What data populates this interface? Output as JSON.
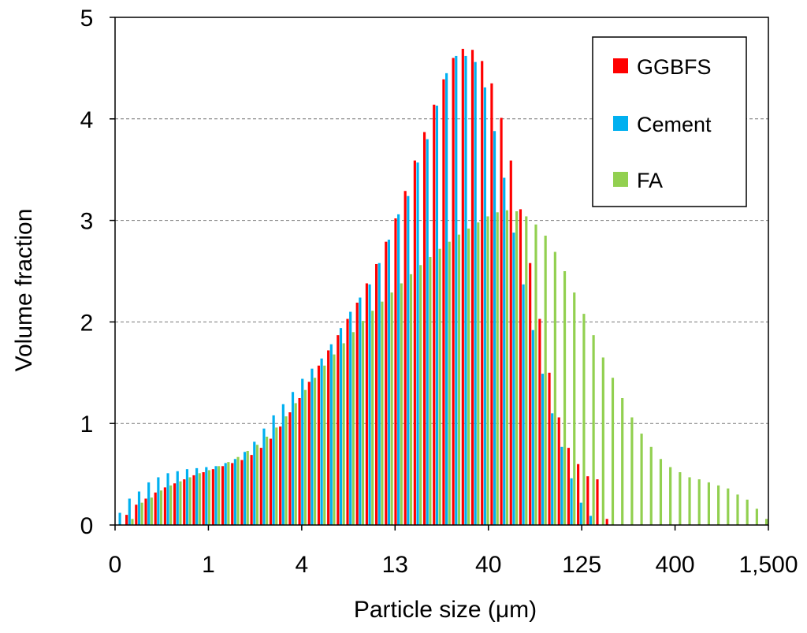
{
  "chart_data": {
    "type": "bar",
    "xlabel": "Particle size (μm)",
    "ylabel": "Volume fraction",
    "ylim": [
      0,
      5
    ],
    "yticks": [
      0,
      1,
      2,
      3,
      4,
      5
    ],
    "xtick_labels": [
      "0",
      "1",
      "4",
      "13",
      "40",
      "125",
      "400",
      "1,500"
    ],
    "legend_position": "top-right",
    "grid": "horizontal dashed",
    "bin_count": 68,
    "series": [
      {
        "name": "GGBFS",
        "color": "#ff0000",
        "values": [
          0,
          0.1,
          0.2,
          0.26,
          0.32,
          0.37,
          0.41,
          0.45,
          0.49,
          0.52,
          0.55,
          0.58,
          0.61,
          0.64,
          0.69,
          0.76,
          0.85,
          0.97,
          1.11,
          1.25,
          1.41,
          1.57,
          1.72,
          1.87,
          2.03,
          2.19,
          2.38,
          2.57,
          2.79,
          3.02,
          3.29,
          3.59,
          3.87,
          4.14,
          4.39,
          4.6,
          4.69,
          4.68,
          4.57,
          4.35,
          4.01,
          3.59,
          3.11,
          2.58,
          2.03,
          1.5,
          1.06,
          0.76,
          0.6,
          0.48,
          0.45,
          0.06,
          0,
          0,
          0,
          0,
          0,
          0,
          0,
          0,
          0,
          0,
          0,
          0,
          0,
          0,
          0,
          0
        ]
      },
      {
        "name": "Cement",
        "color": "#00b0f0",
        "values": [
          0.12,
          0.26,
          0.33,
          0.42,
          0.47,
          0.51,
          0.53,
          0.55,
          0.56,
          0.57,
          0.58,
          0.61,
          0.65,
          0.72,
          0.82,
          0.95,
          1.08,
          1.19,
          1.31,
          1.44,
          1.54,
          1.64,
          1.78,
          1.94,
          2.1,
          2.24,
          2.37,
          2.58,
          2.81,
          3.06,
          3.24,
          3.57,
          3.8,
          4.13,
          4.45,
          4.62,
          4.62,
          4.56,
          4.31,
          3.88,
          3.42,
          2.88,
          2.37,
          1.92,
          1.49,
          1.1,
          0.77,
          0.46,
          0.22,
          0.09,
          0,
          0,
          0,
          0,
          0,
          0,
          0,
          0,
          0,
          0,
          0,
          0,
          0,
          0,
          0,
          0,
          0,
          0
        ]
      },
      {
        "name": "FA",
        "color": "#92d050",
        "values": [
          0,
          0.06,
          0.22,
          0.27,
          0.34,
          0.39,
          0.43,
          0.47,
          0.51,
          0.54,
          0.58,
          0.62,
          0.67,
          0.73,
          0.79,
          0.87,
          0.96,
          1.07,
          1.2,
          1.33,
          1.45,
          1.57,
          1.68,
          1.79,
          1.9,
          2.01,
          2.11,
          2.2,
          2.29,
          2.38,
          2.47,
          2.56,
          2.64,
          2.72,
          2.79,
          2.86,
          2.92,
          2.98,
          3.04,
          3.08,
          3.1,
          3.09,
          3.04,
          2.96,
          2.85,
          2.69,
          2.5,
          2.29,
          2.08,
          1.87,
          1.65,
          1.45,
          1.25,
          1.06,
          0.9,
          0.77,
          0.65,
          0.57,
          0.52,
          0.47,
          0.45,
          0.42,
          0.39,
          0.36,
          0.3,
          0.25,
          0.16,
          0.06
        ]
      }
    ]
  }
}
